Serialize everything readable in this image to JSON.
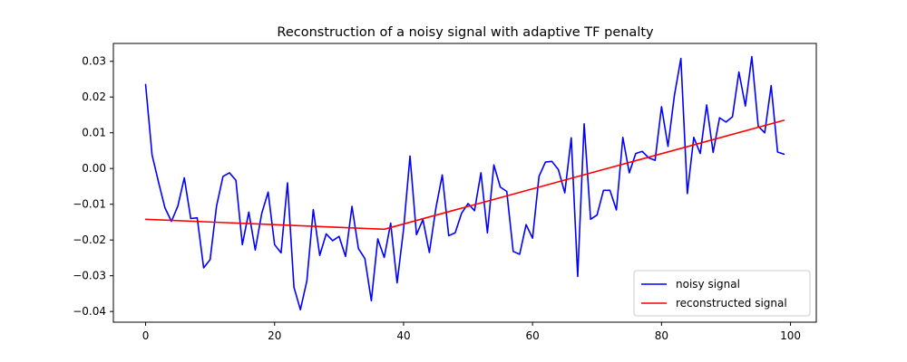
{
  "chart_data": {
    "type": "line",
    "title": "Reconstruction of a noisy signal with adaptive TF penalty",
    "xlabel": "",
    "ylabel": "",
    "xlim": [
      -5,
      104
    ],
    "ylim": [
      -0.043,
      0.035
    ],
    "xticks": [
      0,
      20,
      40,
      60,
      80,
      100
    ],
    "xtick_labels": [
      "0",
      "20",
      "40",
      "60",
      "80",
      "100"
    ],
    "yticks": [
      -0.04,
      -0.03,
      -0.02,
      -0.01,
      0.0,
      0.01,
      0.02,
      0.03
    ],
    "ytick_labels": [
      "−0.04",
      "−0.03",
      "−0.02",
      "−0.01",
      "0.00",
      "0.01",
      "0.02",
      "0.03"
    ],
    "grid": false,
    "legend": {
      "position": "lower-right"
    },
    "series": [
      {
        "name": "noisy signal",
        "color": "#0000ff",
        "x": [
          0,
          1,
          2,
          3,
          4,
          5,
          6,
          7,
          8,
          9,
          10,
          11,
          12,
          13,
          14,
          15,
          16,
          17,
          18,
          19,
          20,
          21,
          22,
          23,
          24,
          25,
          26,
          27,
          28,
          29,
          30,
          31,
          32,
          33,
          34,
          35,
          36,
          37,
          38,
          39,
          40,
          41,
          42,
          43,
          44,
          45,
          46,
          47,
          48,
          49,
          50,
          51,
          52,
          53,
          54,
          55,
          56,
          57,
          58,
          59,
          60,
          61,
          62,
          63,
          64,
          65,
          66,
          67,
          68,
          69,
          70,
          71,
          72,
          73,
          74,
          75,
          76,
          77,
          78,
          79,
          80,
          81,
          82,
          83,
          84,
          85,
          86,
          87,
          88,
          89,
          90,
          91,
          92,
          93,
          94,
          95,
          96,
          97,
          98,
          99
        ],
        "y": [
          0.0235,
          0.0038,
          -0.0038,
          -0.011,
          -0.0148,
          -0.0105,
          -0.0026,
          -0.014,
          -0.0138,
          -0.0278,
          -0.0255,
          -0.0105,
          -0.0022,
          -0.0012,
          -0.0033,
          -0.0213,
          -0.0122,
          -0.0228,
          -0.0126,
          -0.0066,
          -0.0213,
          -0.0236,
          -0.004,
          -0.0332,
          -0.0395,
          -0.0315,
          -0.0115,
          -0.0243,
          -0.0183,
          -0.0202,
          -0.019,
          -0.0246,
          -0.0106,
          -0.0224,
          -0.0252,
          -0.037,
          -0.0197,
          -0.0249,
          -0.0153,
          -0.032,
          -0.017,
          0.0035,
          -0.0185,
          -0.0143,
          -0.0235,
          -0.0112,
          -0.0018,
          -0.0188,
          -0.018,
          -0.0125,
          -0.0098,
          -0.0118,
          -0.0012,
          -0.018,
          0.001,
          -0.0052,
          -0.0064,
          -0.0232,
          -0.024,
          -0.0157,
          -0.0195,
          -0.0022,
          0.0018,
          0.002,
          -0.0003,
          -0.0068,
          0.0086,
          -0.0302,
          0.0125,
          -0.0142,
          -0.013,
          -0.0061,
          -0.0061,
          -0.0116,
          0.0087,
          -0.0012,
          0.0042,
          0.0048,
          0.003,
          0.0023,
          0.0173,
          0.0062,
          0.0205,
          0.0308,
          -0.007,
          0.0087,
          0.0042,
          0.0178,
          0.0045,
          0.0142,
          0.013,
          0.0145,
          0.027,
          0.0175,
          0.0313,
          0.0118,
          0.01,
          0.0232,
          0.0046,
          0.004
        ]
      },
      {
        "name": "reconstructed signal",
        "color": "#ff0000",
        "x": [
          0,
          37,
          99
        ],
        "y": [
          -0.0142,
          -0.017,
          0.0135
        ]
      }
    ]
  }
}
